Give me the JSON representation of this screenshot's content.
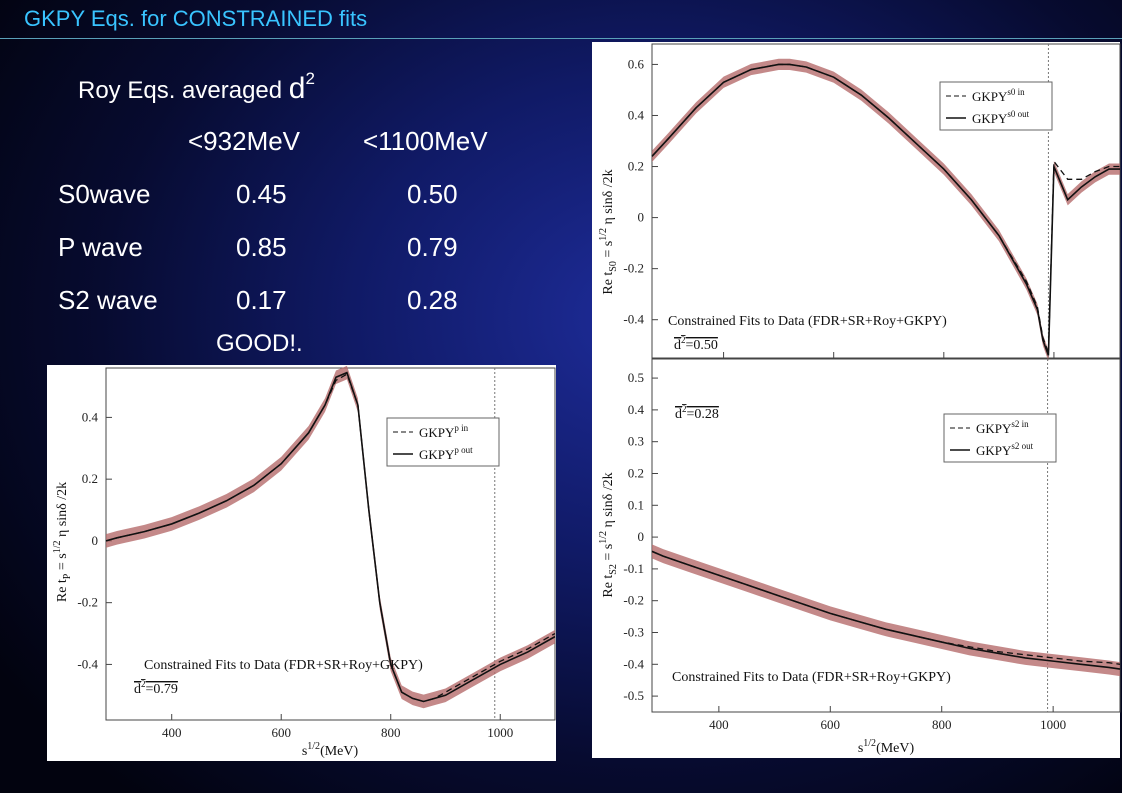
{
  "title": "GKPY Eqs. for  CONSTRAINED fits",
  "roy_table": {
    "heading": "Roy Eqs. averaged ",
    "heading_sym": "d",
    "heading_sup": "2",
    "col1": "<932MeV",
    "col2": "<1100MeV",
    "rows": [
      {
        "label": "S0wave",
        "v1": "0.45",
        "v2": "0.50"
      },
      {
        "label": "P wave",
        "v1": "0.85",
        "v2": "0.79"
      },
      {
        "label": "S2 wave",
        "v1": "0.17",
        "v2": "0.28"
      }
    ],
    "verdict": "GOOD!."
  },
  "chart_data": [
    {
      "type": "line",
      "panel": "S0",
      "x": [
        270,
        300,
        350,
        400,
        450,
        500,
        520,
        550,
        600,
        650,
        700,
        750,
        800,
        850,
        900,
        950,
        970,
        980,
        990,
        1000,
        1025,
        1050,
        1075,
        1100,
        1120
      ],
      "series": [
        {
          "name": "GKPY s0 in",
          "style": "dashed",
          "values": [
            0.24,
            0.31,
            0.43,
            0.53,
            0.58,
            0.6,
            0.6,
            0.59,
            0.55,
            0.48,
            0.39,
            0.29,
            0.19,
            0.07,
            -0.07,
            -0.25,
            -0.35,
            -0.47,
            -0.53,
            0.22,
            0.15,
            0.15,
            0.18,
            0.2,
            0.2
          ]
        },
        {
          "name": "GKPY s0 out",
          "style": "solid",
          "values": [
            0.24,
            0.31,
            0.43,
            0.53,
            0.58,
            0.6,
            0.6,
            0.59,
            0.55,
            0.48,
            0.39,
            0.29,
            0.19,
            0.07,
            -0.07,
            -0.26,
            -0.36,
            -0.48,
            -0.54,
            0.2,
            0.07,
            0.12,
            0.16,
            0.19,
            0.19
          ]
        }
      ],
      "legend": [
        "GKPY",
        "s0 in",
        "GKPY",
        "s0 out"
      ],
      "xlim": [
        270,
        1120
      ],
      "ylim": [
        -0.55,
        0.68
      ],
      "yticks": [
        "0.6",
        "0.4",
        "0.2",
        "0",
        "-0.2",
        "-0.4"
      ],
      "ylabel_parts": [
        "Re t",
        "S0",
        " = s",
        "1/2",
        " η sinδ /2k"
      ],
      "annotation": "Constrained Fits to Data (FDR+SR+Roy+GKPY)",
      "d2_prefix": "d",
      "d2_sup": "2",
      "d2_value": "=0.50",
      "band_color": "#b56b6b",
      "vline": 990
    },
    {
      "type": "line",
      "panel": "S2",
      "x": [
        280,
        300,
        350,
        400,
        450,
        500,
        550,
        600,
        650,
        700,
        750,
        800,
        850,
        900,
        950,
        1000,
        1050,
        1100,
        1120
      ],
      "series": [
        {
          "name": "GKPY s2 in",
          "style": "dashed",
          "values": [
            -0.045,
            -0.06,
            -0.09,
            -0.12,
            -0.15,
            -0.18,
            -0.21,
            -0.24,
            -0.265,
            -0.29,
            -0.31,
            -0.33,
            -0.345,
            -0.36,
            -0.37,
            -0.38,
            -0.39,
            -0.395,
            -0.4
          ]
        },
        {
          "name": "GKPY s2 out",
          "style": "solid",
          "values": [
            -0.045,
            -0.06,
            -0.09,
            -0.12,
            -0.15,
            -0.18,
            -0.21,
            -0.24,
            -0.265,
            -0.29,
            -0.31,
            -0.33,
            -0.35,
            -0.365,
            -0.38,
            -0.39,
            -0.4,
            -0.41,
            -0.415
          ]
        }
      ],
      "legend": [
        "GKPY",
        "s2 in",
        "GKPY",
        "s2 out"
      ],
      "xlim": [
        280,
        1120
      ],
      "ylim": [
        -0.55,
        0.56
      ],
      "xticks": [
        "400",
        "600",
        "800",
        "1000"
      ],
      "yticks": [
        "0.5",
        "0.4",
        "0.3",
        "0.2",
        "0.1",
        "0",
        "-0.1",
        "-0.2",
        "-0.3",
        "-0.4",
        "-0.5"
      ],
      "xlabel_parts": [
        "s",
        "1/2",
        "(MeV)"
      ],
      "ylabel_parts": [
        "Re t",
        "S2",
        " = s",
        "1/2",
        " η sinδ /2k"
      ],
      "annotation": "Constrained Fits to Data (FDR+SR+Roy+GKPY)",
      "d2_prefix": "d",
      "d2_sup": "2",
      "d2_value": "=0.28",
      "band_color": "#b56b6b",
      "vline": 990
    },
    {
      "type": "line",
      "panel": "P",
      "x": [
        280,
        300,
        350,
        400,
        450,
        500,
        550,
        600,
        650,
        680,
        700,
        720,
        740,
        760,
        780,
        800,
        820,
        840,
        860,
        880,
        900,
        950,
        1000,
        1050,
        1100
      ],
      "series": [
        {
          "name": "GKPY p in",
          "style": "dashed",
          "values": [
            0.0,
            0.01,
            0.03,
            0.055,
            0.09,
            0.13,
            0.18,
            0.25,
            0.35,
            0.44,
            0.52,
            0.54,
            0.44,
            0.1,
            -0.2,
            -0.4,
            -0.49,
            -0.51,
            -0.52,
            -0.51,
            -0.49,
            -0.44,
            -0.39,
            -0.35,
            -0.3
          ]
        },
        {
          "name": "GKPY p out",
          "style": "solid",
          "values": [
            0.0,
            0.01,
            0.03,
            0.055,
            0.09,
            0.13,
            0.18,
            0.25,
            0.35,
            0.44,
            0.53,
            0.545,
            0.44,
            0.1,
            -0.2,
            -0.4,
            -0.49,
            -0.51,
            -0.52,
            -0.51,
            -0.5,
            -0.45,
            -0.4,
            -0.36,
            -0.31
          ]
        }
      ],
      "legend": [
        "GKPY",
        "p in",
        "GKPY",
        "p out"
      ],
      "xlim": [
        280,
        1100
      ],
      "ylim": [
        -0.58,
        0.56
      ],
      "xticks": [
        "400",
        "600",
        "800",
        "1000"
      ],
      "yticks": [
        "0.4",
        "0.2",
        "0",
        "-0.2",
        "-0.4"
      ],
      "xlabel_parts": [
        "s",
        "1/2",
        "(MeV)"
      ],
      "ylabel_parts": [
        "Re t",
        "P",
        " = s",
        "1/2",
        " η sinδ /2k"
      ],
      "annotation": "Constrained Fits to Data (FDR+SR+Roy+GKPY)",
      "d2_prefix": "d",
      "d2_sup": "2",
      "d2_value": "=0.79",
      "band_color": "#b56b6b",
      "vline": 990
    }
  ]
}
